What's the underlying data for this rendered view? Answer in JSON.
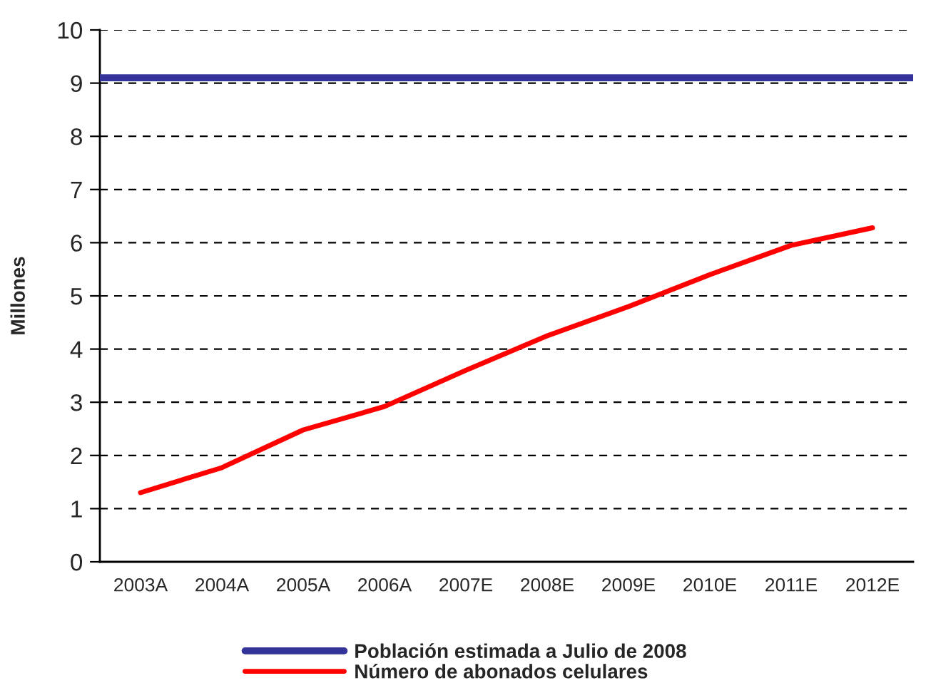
{
  "chart_data": {
    "type": "line",
    "ylabel": "Millones",
    "categories": [
      "2003A",
      "2004A",
      "2005A",
      "2006A",
      "2007E",
      "2008E",
      "2009E",
      "2010E",
      "2011E",
      "2012E"
    ],
    "series": [
      {
        "name": "Número de abonados celulares",
        "color": "#ff0000",
        "values": [
          1.3,
          1.77,
          2.48,
          2.92,
          3.6,
          4.25,
          4.8,
          5.4,
          5.95,
          6.28
        ]
      }
    ],
    "ref_lines": [
      {
        "axis": "y",
        "value": 9.1,
        "label": "Población estimada a Julio de 2008",
        "color": "#333399",
        "line_style": "solid"
      }
    ],
    "ylim": [
      0,
      10
    ],
    "yticks": [
      0,
      1,
      2,
      3,
      4,
      5,
      6,
      7,
      8,
      9,
      10
    ],
    "grid": "y",
    "legend": "bottom",
    "marker": "none",
    "line_style": "solid"
  }
}
